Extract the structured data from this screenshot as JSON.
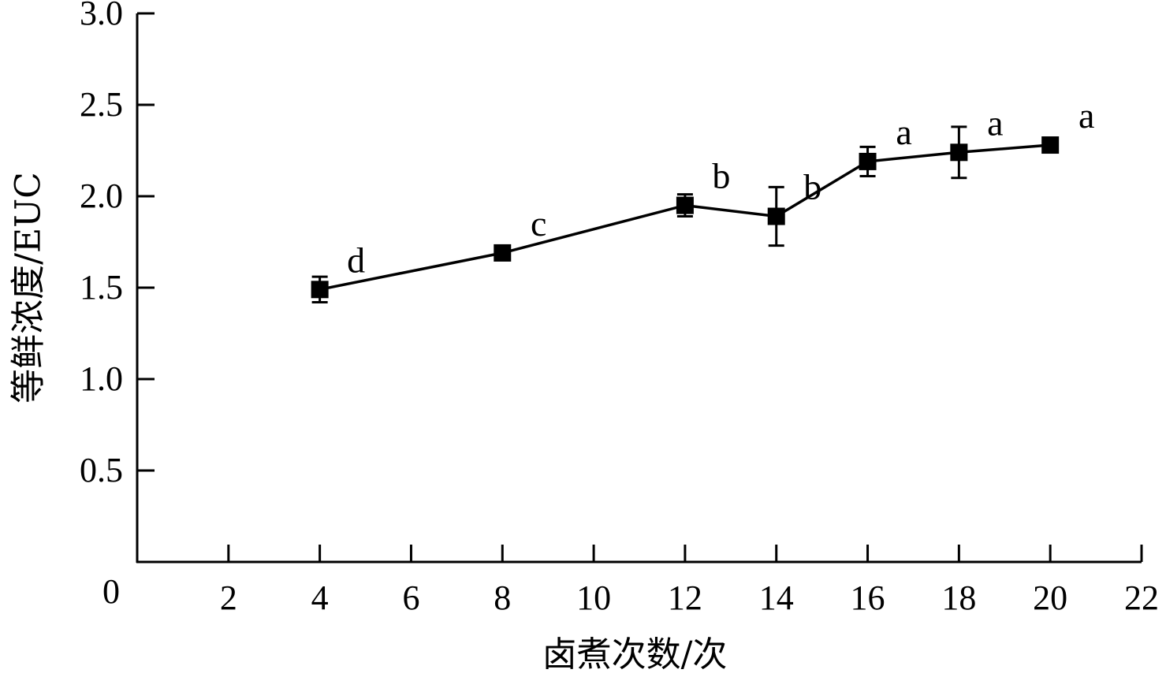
{
  "chart_data": {
    "type": "line",
    "title": "",
    "xlabel": "卤煮次数/次",
    "ylabel": "等鲜浓度/EUC",
    "xlim": [
      0,
      22
    ],
    "ylim": [
      0,
      3.0
    ],
    "x_ticks": [
      2,
      4,
      6,
      8,
      10,
      12,
      14,
      16,
      18,
      20,
      22
    ],
    "y_ticks": [
      0.5,
      1.0,
      1.5,
      2.0,
      2.5,
      3.0
    ],
    "x_tick_labels": [
      "2",
      "4",
      "6",
      "8",
      "10",
      "12",
      "14",
      "16",
      "18",
      "20",
      "22"
    ],
    "y_tick_labels": [
      "0.5",
      "1.0",
      "1.5",
      "2.0",
      "2.5",
      "3.0"
    ],
    "origin_label": "0",
    "grid": false,
    "legend": "none",
    "series": [
      {
        "x": [
          4,
          8,
          12,
          14,
          16,
          18,
          20
        ],
        "y": [
          1.49,
          1.69,
          1.95,
          1.89,
          2.19,
          2.24,
          2.28
        ],
        "error": [
          0.07,
          0.02,
          0.06,
          0.16,
          0.08,
          0.14,
          0.01
        ],
        "significance": [
          "d",
          "c",
          "b",
          "b",
          "a",
          "a",
          "a"
        ],
        "color": "#000000",
        "marker": "square"
      }
    ]
  }
}
